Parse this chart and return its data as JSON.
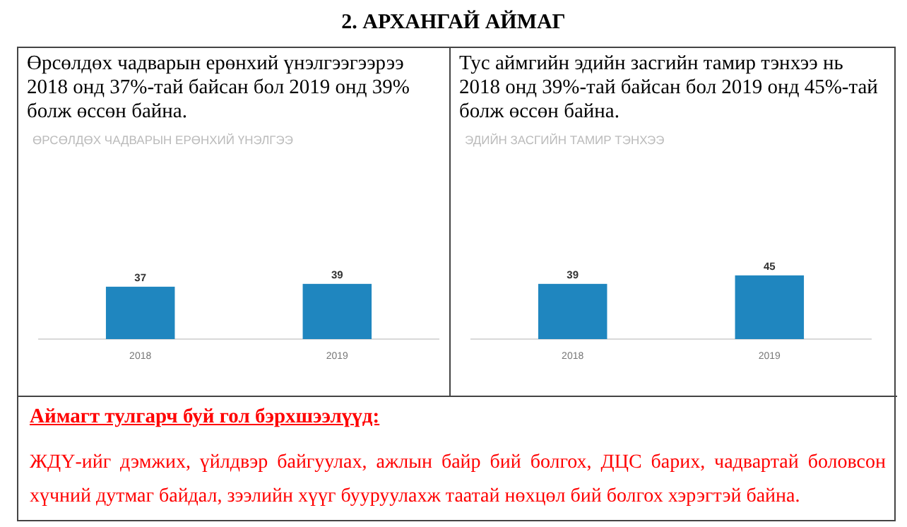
{
  "chart_data": [
    {
      "type": "bar",
      "annotations": [
        "2. АРХАНГАЙ АЙМАГ"
      ],
      "subtitle": "Өрсөлдөх чадварын ерөнхий үнэлгээгээрээ  2018 онд 37%-тай байсан бол 2019 онд 39% болж өссөн байна.",
      "title": "ӨРСӨЛДӨХ ЧАДВАРЫН ЕРӨНХИЙ ҮНЭЛГЭЭ",
      "categories": [
        "2018",
        "2019"
      ],
      "values": [
        37,
        39
      ],
      "color": "#1f86bf",
      "data_labels": true,
      "relative": false
    },
    {
      "type": "bar",
      "subtitle": "Тус аймгийн эдийн засгийн тамир тэнхээ нь 2018 онд 39%-тай байсан бол 2019 онд 45%-тай болж өссөн байна.",
      "title": "ЭДИЙН ЗАСГИЙН ТАМИР ТЭНХЭЭ",
      "categories": [
        "2018",
        "2019"
      ],
      "values": [
        39,
        45
      ],
      "color": "#1f86bf",
      "data_labels": true,
      "relative": false
    },
    {
      "type": "other",
      "title": "Аймагт тулгарч буй гол бэрхшээлүүд:",
      "annotations": [
        "ЖДҮ-ийг дэмжих, үйлдвэр байгуулах, ажлын байр бий болгох, ДЦС барих, чадвартай боловсон хүчний дутмаг байдал, зээлийн хүүг бууруулахж таатай нөхцөл бий болгох хэрэгтэй байна."
      ]
    }
  ]
}
